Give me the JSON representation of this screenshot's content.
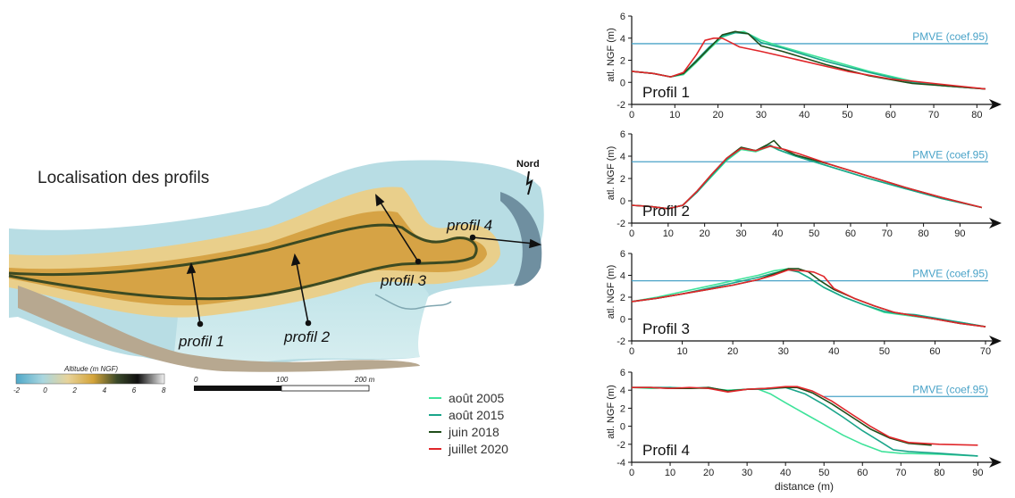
{
  "map": {
    "title": "Localisation des profils",
    "north_label": "Nord",
    "profile_labels": [
      "profil 1",
      "profil 2",
      "profil 3",
      "profil 4"
    ],
    "colorbar": {
      "title": "Altitude (m NGF)",
      "ticks": [
        "-2",
        "0",
        "2",
        "4",
        "6",
        "8"
      ],
      "colors": [
        "#4fa8c8",
        "#a9d6df",
        "#e7d39a",
        "#d4a43a",
        "#3b4a2a",
        "#101010",
        "#f2f2f2"
      ]
    },
    "scalebar": {
      "ticks": [
        "0",
        "100",
        "200 m"
      ]
    }
  },
  "legend": {
    "entries": [
      {
        "label": "août 2005",
        "color": "#3ee39a"
      },
      {
        "label": "août 2015",
        "color": "#1aa58a"
      },
      {
        "label": "juin 2018",
        "color": "#1f4d1a"
      },
      {
        "label": "juillet 2020",
        "color": "#e0262a"
      }
    ]
  },
  "pmve_label": "PMVE (coef.95)",
  "pmve_color": "#4aa3c8",
  "chart_data": [
    {
      "type": "line",
      "label": "Profil 1",
      "ylabel": "atl. NGF (m)",
      "xlim": [
        0,
        82
      ],
      "ylim": [
        -2,
        6
      ],
      "xticks": [
        0,
        10,
        20,
        30,
        40,
        50,
        60,
        70,
        80
      ],
      "yticks": [
        -2,
        0,
        2,
        4,
        6
      ],
      "pmve": {
        "y": 3.5,
        "x_start": 0
      },
      "series": [
        {
          "name": "août 2005",
          "x": [
            0,
            5,
            9,
            12,
            15,
            18,
            21,
            24,
            26,
            30,
            35,
            45,
            55,
            65,
            72,
            82
          ],
          "y": [
            1.0,
            0.8,
            0.5,
            0.7,
            1.8,
            3.0,
            4.1,
            4.5,
            4.6,
            3.8,
            3.2,
            2.1,
            1.0,
            0.1,
            -0.3,
            -0.6
          ]
        },
        {
          "name": "août 2015",
          "x": [
            0,
            5,
            9,
            12,
            15,
            18,
            21,
            24,
            27,
            30,
            35,
            45,
            55,
            65,
            72,
            82
          ],
          "y": [
            1.0,
            0.8,
            0.5,
            0.8,
            2.0,
            3.2,
            4.2,
            4.5,
            4.4,
            3.6,
            3.1,
            1.9,
            0.9,
            0.0,
            -0.3,
            -0.6
          ]
        },
        {
          "name": "juin 2018",
          "x": [
            0,
            5,
            9,
            12,
            15,
            18,
            21,
            24,
            27,
            30,
            35,
            45,
            55,
            65,
            72,
            82
          ],
          "y": [
            1.0,
            0.8,
            0.5,
            0.8,
            1.9,
            3.1,
            4.3,
            4.6,
            4.4,
            3.3,
            2.8,
            1.6,
            0.6,
            -0.1,
            -0.3,
            -0.6
          ]
        },
        {
          "name": "juillet 2020",
          "x": [
            0,
            5,
            9,
            12,
            15,
            17,
            19,
            21,
            23,
            25,
            30,
            40,
            50,
            60,
            70,
            82
          ],
          "y": [
            1.0,
            0.8,
            0.5,
            0.9,
            2.5,
            3.8,
            4.0,
            4.0,
            3.6,
            3.2,
            2.8,
            1.9,
            1.0,
            0.3,
            -0.1,
            -0.6
          ]
        }
      ]
    },
    {
      "type": "line",
      "label": "Profil 2",
      "ylabel": "atl. NGF (m)",
      "xlim": [
        0,
        97
      ],
      "ylim": [
        -2,
        6
      ],
      "xticks": [
        0,
        10,
        20,
        30,
        40,
        50,
        60,
        70,
        80,
        90
      ],
      "yticks": [
        -2,
        0,
        2,
        4,
        6
      ],
      "pmve": {
        "y": 3.5,
        "x_start": 0
      },
      "series": [
        {
          "name": "août 2005",
          "x": [
            0,
            5,
            10,
            14,
            18,
            22,
            26,
            30,
            34,
            38,
            40,
            45,
            55,
            65,
            75,
            85,
            96
          ],
          "y": [
            -0.4,
            -0.5,
            -0.7,
            -0.4,
            0.8,
            2.2,
            3.6,
            4.6,
            4.4,
            4.9,
            4.6,
            4.0,
            3.0,
            2.0,
            1.1,
            0.2,
            -0.6
          ]
        },
        {
          "name": "août 2015",
          "x": [
            0,
            5,
            10,
            14,
            18,
            22,
            26,
            30,
            34,
            38,
            40,
            45,
            55,
            65,
            75,
            85,
            96
          ],
          "y": [
            -0.4,
            -0.5,
            -0.7,
            -0.4,
            0.8,
            2.3,
            3.7,
            4.7,
            4.5,
            5.0,
            4.6,
            4.0,
            3.0,
            2.0,
            1.1,
            0.2,
            -0.6
          ]
        },
        {
          "name": "juin 2018",
          "x": [
            0,
            5,
            10,
            14,
            18,
            22,
            26,
            30,
            34,
            37,
            39,
            41,
            45,
            55,
            65,
            75,
            85,
            96
          ],
          "y": [
            -0.4,
            -0.5,
            -0.7,
            -0.4,
            0.9,
            2.4,
            3.8,
            4.8,
            4.5,
            5.0,
            5.4,
            4.7,
            4.1,
            3.2,
            2.2,
            1.2,
            0.3,
            -0.6
          ]
        },
        {
          "name": "juillet 2020",
          "x": [
            0,
            5,
            10,
            14,
            18,
            22,
            26,
            30,
            34,
            38,
            42,
            46,
            55,
            65,
            75,
            85,
            96
          ],
          "y": [
            -0.4,
            -0.5,
            -0.7,
            -0.4,
            0.9,
            2.4,
            3.8,
            4.7,
            4.5,
            4.9,
            4.6,
            4.2,
            3.2,
            2.2,
            1.2,
            0.3,
            -0.6
          ]
        }
      ]
    },
    {
      "type": "line",
      "label": "Profil 3",
      "ylabel": "atl. NGF (m)",
      "xlim": [
        0,
        70
      ],
      "ylim": [
        -2,
        6
      ],
      "xticks": [
        0,
        10,
        20,
        30,
        40,
        50,
        60,
        70
      ],
      "yticks": [
        -2,
        0,
        2,
        4,
        6
      ],
      "pmve": {
        "y": 3.5,
        "x_start": 0
      },
      "series": [
        {
          "name": "août 2005",
          "x": [
            0,
            5,
            10,
            15,
            20,
            25,
            28,
            31,
            33,
            35,
            38,
            42,
            46,
            50,
            55,
            60,
            65,
            70
          ],
          "y": [
            1.6,
            2.0,
            2.5,
            3.0,
            3.5,
            4.0,
            4.4,
            4.6,
            4.3,
            3.8,
            2.9,
            2.0,
            1.3,
            0.6,
            0.3,
            0.0,
            -0.3,
            -0.7
          ]
        },
        {
          "name": "août 2015",
          "x": [
            0,
            5,
            10,
            15,
            20,
            25,
            28,
            31,
            33,
            35,
            38,
            42,
            46,
            50,
            53,
            56,
            60,
            65,
            70
          ],
          "y": [
            1.6,
            1.9,
            2.3,
            2.8,
            3.3,
            3.8,
            4.2,
            4.5,
            4.3,
            3.8,
            2.9,
            2.0,
            1.3,
            0.7,
            0.5,
            0.4,
            0.1,
            -0.3,
            -0.7
          ]
        },
        {
          "name": "juin 2018",
          "x": [
            0,
            5,
            10,
            15,
            20,
            25,
            28,
            31,
            33,
            35,
            37,
            40,
            44,
            48,
            52,
            56,
            60,
            65,
            70
          ],
          "y": [
            1.6,
            1.9,
            2.3,
            2.7,
            3.1,
            3.6,
            4.1,
            4.6,
            4.6,
            4.3,
            3.6,
            2.7,
            1.9,
            1.2,
            0.6,
            0.3,
            0.0,
            -0.4,
            -0.7
          ]
        },
        {
          "name": "juillet 2020",
          "x": [
            0,
            5,
            10,
            15,
            20,
            25,
            28,
            31,
            34,
            36,
            38,
            40,
            44,
            48,
            52,
            56,
            60,
            65,
            70
          ],
          "y": [
            1.6,
            1.9,
            2.3,
            2.7,
            3.1,
            3.6,
            4.0,
            4.5,
            4.4,
            4.3,
            3.9,
            2.8,
            1.9,
            1.2,
            0.6,
            0.3,
            0.0,
            -0.4,
            -0.7
          ]
        }
      ]
    },
    {
      "type": "line",
      "label": "Profil 4",
      "ylabel": "atl. NGF (m)",
      "xlabel": "distance (m)",
      "xlim": [
        0,
        92
      ],
      "ylim": [
        -4,
        6
      ],
      "xticks": [
        0,
        10,
        20,
        30,
        40,
        50,
        60,
        70,
        80,
        90
      ],
      "yticks": [
        -4,
        -2,
        0,
        2,
        4,
        6
      ],
      "pmve": {
        "y": 3.3,
        "x_start": 50
      },
      "series": [
        {
          "name": "août 2005",
          "x": [
            0,
            5,
            10,
            15,
            20,
            25,
            30,
            33,
            36,
            40,
            45,
            50,
            55,
            60,
            65,
            70,
            80,
            90
          ],
          "y": [
            4.3,
            4.2,
            4.3,
            4.2,
            4.2,
            4.0,
            4.1,
            4.1,
            3.6,
            2.6,
            1.4,
            0.2,
            -1.0,
            -2.0,
            -2.8,
            -3.0,
            -3.1,
            -3.3
          ]
        },
        {
          "name": "août 2015",
          "x": [
            0,
            5,
            10,
            15,
            20,
            25,
            30,
            35,
            40,
            45,
            50,
            55,
            60,
            65,
            68,
            72,
            80,
            90
          ],
          "y": [
            4.3,
            4.3,
            4.3,
            4.2,
            4.3,
            3.9,
            4.1,
            4.1,
            4.3,
            3.6,
            2.4,
            1.0,
            -0.5,
            -1.8,
            -2.6,
            -2.8,
            -3.0,
            -3.3
          ]
        },
        {
          "name": "juin 2018",
          "x": [
            0,
            5,
            10,
            15,
            20,
            25,
            30,
            35,
            40,
            43,
            47,
            52,
            57,
            62,
            67,
            72,
            78
          ],
          "y": [
            4.3,
            4.3,
            4.2,
            4.2,
            4.3,
            3.9,
            4.1,
            4.2,
            4.3,
            4.3,
            3.7,
            2.5,
            1.1,
            -0.3,
            -1.3,
            -1.9,
            -2.1
          ]
        },
        {
          "name": "juillet 2020",
          "x": [
            0,
            5,
            10,
            15,
            20,
            25,
            30,
            35,
            40,
            43,
            47,
            52,
            57,
            62,
            67,
            72,
            80,
            90
          ],
          "y": [
            4.3,
            4.3,
            4.2,
            4.3,
            4.2,
            3.8,
            4.1,
            4.2,
            4.4,
            4.4,
            3.9,
            2.8,
            1.4,
            0.0,
            -1.2,
            -1.8,
            -2.0,
            -2.1
          ]
        }
      ]
    }
  ]
}
